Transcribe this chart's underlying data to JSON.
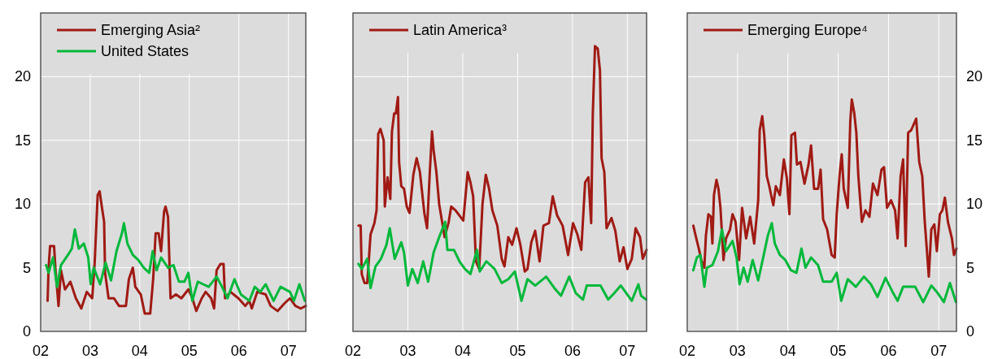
{
  "chart_data": [
    {
      "type": "line",
      "xlim": [
        2002,
        2007.35
      ],
      "xticks": [
        {
          "value": 2002,
          "label": "02"
        },
        {
          "value": 2003,
          "label": "03"
        },
        {
          "value": 2004,
          "label": "04"
        },
        {
          "value": 2005,
          "label": "05"
        },
        {
          "value": 2006,
          "label": "06"
        },
        {
          "value": 2007,
          "label": "07"
        }
      ],
      "ylim": [
        0,
        25
      ],
      "yticks": [
        0,
        5,
        10,
        15,
        20
      ],
      "grid": true,
      "legend": "top left",
      "series": [
        {
          "name": "Emerging Asia²",
          "color": "#a01a14",
          "x": [
            2002.14,
            2002.16,
            2002.19,
            2002.27,
            2002.3,
            2002.36,
            2002.41,
            2002.49,
            2002.6,
            2002.71,
            2002.82,
            2002.93,
            2003.04,
            2003.09,
            2003.15,
            2003.19,
            2003.23,
            2003.28,
            2003.3,
            2003.37,
            2003.48,
            2003.58,
            2003.72,
            2003.78,
            2003.86,
            2003.91,
            2004.02,
            2004.1,
            2004.21,
            2004.27,
            2004.32,
            2004.38,
            2004.43,
            2004.49,
            2004.52,
            2004.57,
            2004.62,
            2004.73,
            2004.84,
            2004.98,
            2005.06,
            2005.14,
            2005.25,
            2005.33,
            2005.44,
            2005.5,
            2005.55,
            2005.63,
            2005.69,
            2005.72,
            2005.83,
            2005.99,
            2006.13,
            2006.21,
            2006.26,
            2006.37,
            2006.54,
            2006.64,
            2006.78,
            2006.92,
            2007.03,
            2007.14,
            2007.25,
            2007.35
          ],
          "values": [
            2.4,
            5.0,
            6.7,
            6.7,
            4.8,
            2.0,
            4.8,
            3.3,
            3.9,
            2.6,
            1.8,
            3.1,
            2.6,
            5.4,
            10.7,
            11.0,
            9.9,
            8.6,
            4.6,
            2.6,
            2.6,
            2.0,
            2.0,
            4.1,
            5.0,
            3.5,
            2.9,
            1.4,
            1.4,
            4.1,
            7.7,
            7.7,
            6.3,
            9.4,
            9.8,
            9.0,
            2.6,
            2.9,
            2.6,
            3.3,
            2.6,
            1.6,
            2.6,
            3.1,
            2.6,
            1.8,
            4.8,
            5.3,
            5.3,
            2.6,
            3.1,
            2.6,
            2.0,
            2.4,
            1.8,
            3.1,
            2.9,
            2.0,
            1.6,
            2.2,
            2.6,
            2.0,
            1.8,
            2.0
          ]
        },
        {
          "name": "United States",
          "color": "#00b83a",
          "x": [
            2002.11,
            2002.16,
            2002.25,
            2002.33,
            2002.41,
            2002.55,
            2002.63,
            2002.69,
            2002.77,
            2002.87,
            2002.96,
            2003.01,
            2003.07,
            2003.2,
            2003.31,
            2003.42,
            2003.53,
            2003.64,
            2003.68,
            2003.75,
            2003.86,
            2003.97,
            2004.08,
            2004.19,
            2004.26,
            2004.34,
            2004.43,
            2004.57,
            2004.68,
            2004.79,
            2004.9,
            2004.98,
            2005.06,
            2005.17,
            2005.28,
            2005.39,
            2005.55,
            2005.66,
            2005.77,
            2005.91,
            2006.04,
            2006.21,
            2006.32,
            2006.43,
            2006.54,
            2006.7,
            2006.84,
            2007.03,
            2007.11,
            2007.22,
            2007.33
          ],
          "values": [
            5.2,
            4.6,
            5.8,
            3.5,
            5.2,
            6.0,
            6.5,
            8.0,
            6.5,
            6.9,
            5.8,
            3.7,
            5.0,
            3.7,
            5.4,
            4.0,
            6.3,
            7.7,
            8.5,
            6.9,
            6.0,
            5.6,
            5.0,
            4.6,
            6.3,
            4.8,
            5.8,
            5.0,
            5.2,
            3.9,
            3.9,
            4.6,
            2.4,
            3.9,
            3.7,
            3.5,
            4.3,
            3.5,
            2.6,
            4.1,
            2.9,
            2.4,
            3.5,
            3.1,
            3.7,
            2.4,
            3.5,
            3.1,
            2.4,
            3.7,
            2.4
          ]
        }
      ]
    },
    {
      "type": "line",
      "tick_labels": "x",
      "xlim": [
        2002,
        2007.35
      ],
      "xticks": [
        {
          "value": 2002,
          "label": "02"
        },
        {
          "value": 2003,
          "label": "03"
        },
        {
          "value": 2004,
          "label": "04"
        },
        {
          "value": 2005,
          "label": "05"
        },
        {
          "value": 2006,
          "label": "06"
        },
        {
          "value": 2007,
          "label": "07"
        }
      ],
      "ylim": [
        0,
        25
      ],
      "yticks": [
        0,
        5,
        10,
        15,
        20
      ],
      "grid": true,
      "legend": "top left",
      "series": [
        {
          "name": "Latin America³",
          "color": "#a01a14",
          "x": [
            2002.1,
            2002.14,
            2002.16,
            2002.21,
            2002.26,
            2002.32,
            2002.39,
            2002.43,
            2002.46,
            2002.5,
            2002.56,
            2002.58,
            2002.63,
            2002.68,
            2002.71,
            2002.75,
            2002.78,
            2002.82,
            2002.84,
            2002.88,
            2002.93,
            2002.98,
            2003.03,
            2003.1,
            2003.16,
            2003.22,
            2003.3,
            2003.35,
            2003.4,
            2003.44,
            2003.47,
            2003.52,
            2003.57,
            2003.62,
            2003.67,
            2003.74,
            2003.79,
            2003.87,
            2003.94,
            2004.01,
            2004.09,
            2004.14,
            2004.19,
            2004.24,
            2004.3,
            2004.36,
            2004.42,
            2004.48,
            2004.54,
            2004.63,
            2004.71,
            2004.76,
            2004.83,
            2004.9,
            2004.98,
            2005.05,
            2005.13,
            2005.18,
            2005.25,
            2005.32,
            2005.4,
            2005.47,
            2005.57,
            2005.64,
            2005.72,
            2005.82,
            2005.92,
            2006.01,
            2006.09,
            2006.16,
            2006.23,
            2006.29,
            2006.34,
            2006.37,
            2006.41,
            2006.46,
            2006.5,
            2006.53,
            2006.58,
            2006.62,
            2006.71,
            2006.78,
            2006.86,
            2006.93,
            2007.0,
            2007.08,
            2007.15,
            2007.23,
            2007.28,
            2007.35
          ],
          "values": [
            8.3,
            8.3,
            4.5,
            3.8,
            3.8,
            7.6,
            8.5,
            9.5,
            15.5,
            15.9,
            15.0,
            9.8,
            12.1,
            10.4,
            15.7,
            17.1,
            17.1,
            18.4,
            13.3,
            11.4,
            11.2,
            9.8,
            9.3,
            12.3,
            13.6,
            12.5,
            9.3,
            8.1,
            12.5,
            15.7,
            14.2,
            12.5,
            10.0,
            8.7,
            7.4,
            8.5,
            9.8,
            9.5,
            9.1,
            8.7,
            12.5,
            11.7,
            10.6,
            5.5,
            4.9,
            10.0,
            12.3,
            11.2,
            9.5,
            8.3,
            5.7,
            5.1,
            7.4,
            6.8,
            8.1,
            6.8,
            4.7,
            4.9,
            7.0,
            7.9,
            5.5,
            8.3,
            8.5,
            10.6,
            9.1,
            8.3,
            6.0,
            8.5,
            7.6,
            6.4,
            11.7,
            12.1,
            8.5,
            17.1,
            22.4,
            22.2,
            20.5,
            13.6,
            12.5,
            8.1,
            8.9,
            7.9,
            5.5,
            6.6,
            4.9,
            5.7,
            8.1,
            7.4,
            5.7,
            6.4
          ]
        },
        {
          "color": "#00b83a",
          "x": [
            2002.1,
            2002.16,
            2002.26,
            2002.32,
            2002.41,
            2002.51,
            2002.61,
            2002.67,
            2002.76,
            2002.88,
            2002.93,
            2003.0,
            2003.08,
            2003.18,
            2003.28,
            2003.37,
            2003.47,
            2003.57,
            2003.68,
            2003.72,
            2003.84,
            2003.94,
            2004.04,
            2004.14,
            2004.26,
            2004.31,
            2004.43,
            2004.58,
            2004.71,
            2004.83,
            2004.95,
            2005.07,
            2005.18,
            2005.32,
            2005.52,
            2005.67,
            2005.79,
            2005.94,
            2006.06,
            2006.19,
            2006.26,
            2006.39,
            2006.51,
            2006.65,
            2006.76,
            2006.88,
            2006.98,
            2007.08,
            2007.2,
            2007.25,
            2007.34
          ],
          "values": [
            5.3,
            4.9,
            5.7,
            3.4,
            5.1,
            5.7,
            6.8,
            8.1,
            5.7,
            7.0,
            6.2,
            3.6,
            4.9,
            3.8,
            5.5,
            3.9,
            6.2,
            7.4,
            8.6,
            6.4,
            6.4,
            5.5,
            4.9,
            4.5,
            6.4,
            4.7,
            5.5,
            4.9,
            3.8,
            4.1,
            4.7,
            2.4,
            4.1,
            3.6,
            4.3,
            3.4,
            2.8,
            4.3,
            3.0,
            2.5,
            3.6,
            3.6,
            3.6,
            2.5,
            3.0,
            3.6,
            3.0,
            2.4,
            3.7,
            2.8,
            2.5
          ]
        }
      ]
    },
    {
      "type": "line",
      "xlim": [
        2002,
        2007.35
      ],
      "xticks": [
        {
          "value": 2002,
          "label": "02"
        },
        {
          "value": 2003,
          "label": "03"
        },
        {
          "value": 2004,
          "label": "04"
        },
        {
          "value": 2005,
          "label": "05"
        },
        {
          "value": 2006,
          "label": "06"
        },
        {
          "value": 2007,
          "label": "07"
        }
      ],
      "y2lim": [
        0,
        25
      ],
      "y2ticks": [
        0,
        5,
        10,
        15,
        20
      ],
      "grid": true,
      "legend": "top left",
      "series": [
        {
          "name": "Emerging Europe⁴",
          "color": "#a01a14",
          "axis": "y2",
          "x": [
            2002.12,
            2002.18,
            2002.23,
            2002.28,
            2002.34,
            2002.37,
            2002.42,
            2002.47,
            2002.5,
            2002.53,
            2002.58,
            2002.62,
            2002.66,
            2002.72,
            2002.77,
            2002.85,
            2002.9,
            2002.96,
            2003.03,
            2003.09,
            2003.17,
            2003.25,
            2003.33,
            2003.41,
            2003.44,
            2003.49,
            2003.53,
            2003.58,
            2003.63,
            2003.71,
            2003.76,
            2003.84,
            2003.92,
            2003.98,
            2004.03,
            2004.07,
            2004.14,
            2004.18,
            2004.25,
            2004.33,
            2004.41,
            2004.46,
            2004.52,
            2004.6,
            2004.65,
            2004.7,
            2004.78,
            2004.87,
            2004.93,
            2004.97,
            2005.03,
            2005.07,
            2005.11,
            2005.19,
            2005.24,
            2005.27,
            2005.32,
            2005.36,
            2005.4,
            2005.47,
            2005.54,
            2005.62,
            2005.69,
            2005.78,
            2005.86,
            2005.91,
            2005.97,
            2006.05,
            2006.13,
            2006.18,
            2006.24,
            2006.29,
            2006.34,
            2006.39,
            2006.45,
            2006.55,
            2006.61,
            2006.67,
            2006.72,
            2006.76,
            2006.8,
            2006.85,
            2006.91,
            2006.96,
            2007.02,
            2007.07,
            2007.12,
            2007.18,
            2007.26,
            2007.3,
            2007.35
          ],
          "values": [
            8.3,
            7.3,
            6.5,
            5.6,
            5.0,
            7.5,
            9.2,
            9.0,
            6.9,
            10.7,
            11.9,
            11.2,
            9.7,
            5.6,
            7.3,
            8.0,
            9.2,
            8.6,
            5.6,
            9.7,
            7.3,
            9.0,
            6.9,
            10.3,
            15.8,
            16.9,
            15.4,
            12.2,
            11.4,
            9.9,
            11.4,
            10.7,
            13.5,
            12.0,
            9.2,
            15.4,
            15.6,
            13.1,
            13.3,
            11.6,
            13.1,
            14.6,
            11.2,
            11.2,
            12.7,
            8.8,
            8.0,
            6.0,
            5.8,
            9.2,
            12.4,
            13.9,
            11.2,
            9.7,
            16.5,
            18.2,
            17.1,
            15.6,
            12.2,
            8.6,
            9.5,
            9.0,
            11.6,
            10.7,
            12.7,
            12.9,
            9.7,
            10.3,
            9.5,
            7.3,
            12.2,
            13.5,
            6.7,
            15.6,
            15.8,
            16.7,
            13.3,
            12.2,
            8.6,
            6.5,
            4.3,
            8.0,
            8.4,
            6.3,
            9.2,
            9.5,
            10.5,
            8.6,
            7.3,
            6.0,
            6.5
          ]
        },
        {
          "color": "#00b83a",
          "axis": "y2",
          "x": [
            2002.12,
            2002.19,
            2002.26,
            2002.34,
            2002.39,
            2002.5,
            2002.61,
            2002.69,
            2002.77,
            2002.9,
            2002.98,
            2003.04,
            2003.12,
            2003.2,
            2003.3,
            2003.41,
            2003.52,
            2003.6,
            2003.68,
            2003.74,
            2003.84,
            2003.95,
            2004.06,
            2004.17,
            2004.27,
            2004.35,
            2004.46,
            2004.6,
            2004.7,
            2004.87,
            2004.97,
            2005.06,
            2005.19,
            2005.35,
            2005.51,
            2005.65,
            2005.78,
            2005.94,
            2006.08,
            2006.18,
            2006.29,
            2006.42,
            2006.53,
            2006.69,
            2006.85,
            2006.96,
            2007.1,
            2007.22,
            2007.34
          ],
          "values": [
            4.8,
            5.8,
            6.0,
            3.5,
            5.0,
            5.2,
            6.3,
            8.0,
            6.3,
            7.1,
            5.8,
            3.7,
            5.0,
            3.9,
            5.6,
            4.0,
            6.0,
            7.5,
            8.5,
            6.9,
            6.0,
            5.6,
            4.8,
            4.6,
            6.5,
            5.0,
            5.8,
            5.2,
            3.9,
            3.9,
            4.6,
            2.4,
            4.1,
            3.5,
            4.3,
            3.7,
            2.7,
            4.2,
            3.1,
            2.4,
            3.5,
            3.5,
            3.5,
            2.3,
            3.6,
            3.1,
            2.3,
            3.8,
            2.3
          ]
        }
      ]
    }
  ]
}
